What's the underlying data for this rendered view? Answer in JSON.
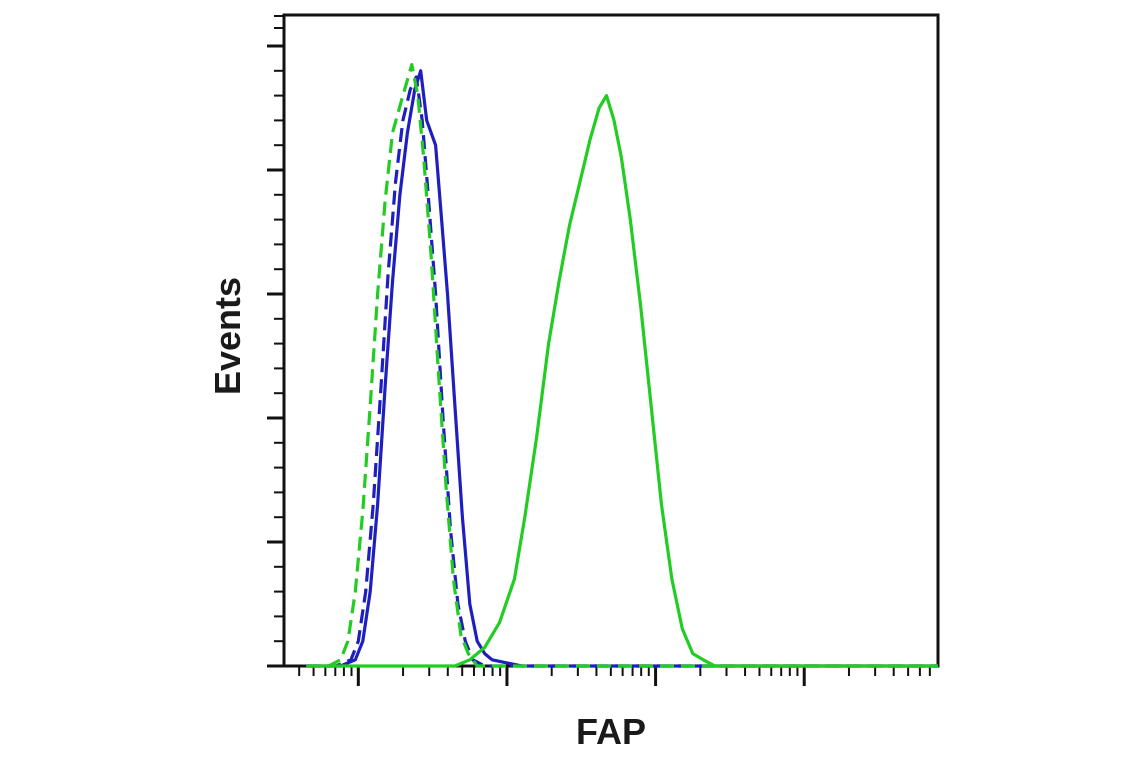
{
  "chart_data": {
    "type": "line",
    "title": "",
    "xlabel": "FAP",
    "ylabel": "Events",
    "x_scale": "log",
    "xlim_decades": [
      1.5,
      5.9
    ],
    "ylim": [
      0,
      1.05
    ],
    "grid": false,
    "legend": "none",
    "series": [
      {
        "color": "#1f1fbf",
        "style": "solid",
        "points": [
          [
            1.65,
            0
          ],
          [
            1.88,
            0
          ],
          [
            1.98,
            0.01
          ],
          [
            2.03,
            0.04
          ],
          [
            2.08,
            0.12
          ],
          [
            2.13,
            0.26
          ],
          [
            2.18,
            0.45
          ],
          [
            2.23,
            0.62
          ],
          [
            2.28,
            0.76
          ],
          [
            2.33,
            0.86
          ],
          [
            2.38,
            0.93
          ],
          [
            2.42,
            0.96
          ],
          [
            2.46,
            0.88
          ],
          [
            2.52,
            0.84
          ],
          [
            2.56,
            0.72
          ],
          [
            2.6,
            0.6
          ],
          [
            2.65,
            0.42
          ],
          [
            2.7,
            0.24
          ],
          [
            2.75,
            0.1
          ],
          [
            2.8,
            0.04
          ],
          [
            2.85,
            0.02
          ],
          [
            2.9,
            0.01
          ],
          [
            3.1,
            0
          ],
          [
            5.9,
            0
          ]
        ]
      },
      {
        "color": "#1f1fbf",
        "style": "dashed",
        "points": [
          [
            1.65,
            0
          ],
          [
            1.85,
            0
          ],
          [
            1.95,
            0.01
          ],
          [
            2.0,
            0.04
          ],
          [
            2.05,
            0.12
          ],
          [
            2.1,
            0.26
          ],
          [
            2.15,
            0.44
          ],
          [
            2.2,
            0.63
          ],
          [
            2.25,
            0.78
          ],
          [
            2.3,
            0.88
          ],
          [
            2.35,
            0.93
          ],
          [
            2.39,
            0.95
          ],
          [
            2.43,
            0.88
          ],
          [
            2.47,
            0.76
          ],
          [
            2.52,
            0.6
          ],
          [
            2.57,
            0.4
          ],
          [
            2.62,
            0.22
          ],
          [
            2.67,
            0.1
          ],
          [
            2.72,
            0.04
          ],
          [
            2.77,
            0.01
          ],
          [
            2.85,
            0
          ],
          [
            5.9,
            0
          ]
        ]
      },
      {
        "color": "#22cc22",
        "style": "dashed",
        "points": [
          [
            1.65,
            0
          ],
          [
            1.8,
            0
          ],
          [
            1.88,
            0.01
          ],
          [
            1.93,
            0.04
          ],
          [
            1.98,
            0.12
          ],
          [
            2.03,
            0.25
          ],
          [
            2.08,
            0.42
          ],
          [
            2.13,
            0.6
          ],
          [
            2.18,
            0.75
          ],
          [
            2.23,
            0.86
          ],
          [
            2.3,
            0.92
          ],
          [
            2.36,
            0.97
          ],
          [
            2.4,
            0.92
          ],
          [
            2.44,
            0.82
          ],
          [
            2.49,
            0.66
          ],
          [
            2.54,
            0.47
          ],
          [
            2.59,
            0.29
          ],
          [
            2.64,
            0.14
          ],
          [
            2.69,
            0.05
          ],
          [
            2.74,
            0.02
          ],
          [
            2.8,
            0
          ],
          [
            5.9,
            0
          ]
        ]
      },
      {
        "color": "#22cc22",
        "style": "solid",
        "points": [
          [
            1.65,
            0
          ],
          [
            2.65,
            0
          ],
          [
            2.75,
            0.01
          ],
          [
            2.85,
            0.03
          ],
          [
            2.95,
            0.07
          ],
          [
            3.05,
            0.14
          ],
          [
            3.12,
            0.24
          ],
          [
            3.2,
            0.37
          ],
          [
            3.28,
            0.52
          ],
          [
            3.35,
            0.62
          ],
          [
            3.42,
            0.71
          ],
          [
            3.5,
            0.79
          ],
          [
            3.56,
            0.85
          ],
          [
            3.62,
            0.9
          ],
          [
            3.67,
            0.92
          ],
          [
            3.72,
            0.88
          ],
          [
            3.77,
            0.82
          ],
          [
            3.83,
            0.72
          ],
          [
            3.9,
            0.58
          ],
          [
            3.97,
            0.42
          ],
          [
            4.04,
            0.26
          ],
          [
            4.11,
            0.14
          ],
          [
            4.18,
            0.06
          ],
          [
            4.25,
            0.02
          ],
          [
            4.32,
            0.01
          ],
          [
            4.4,
            0
          ],
          [
            5.9,
            0
          ]
        ]
      }
    ]
  }
}
